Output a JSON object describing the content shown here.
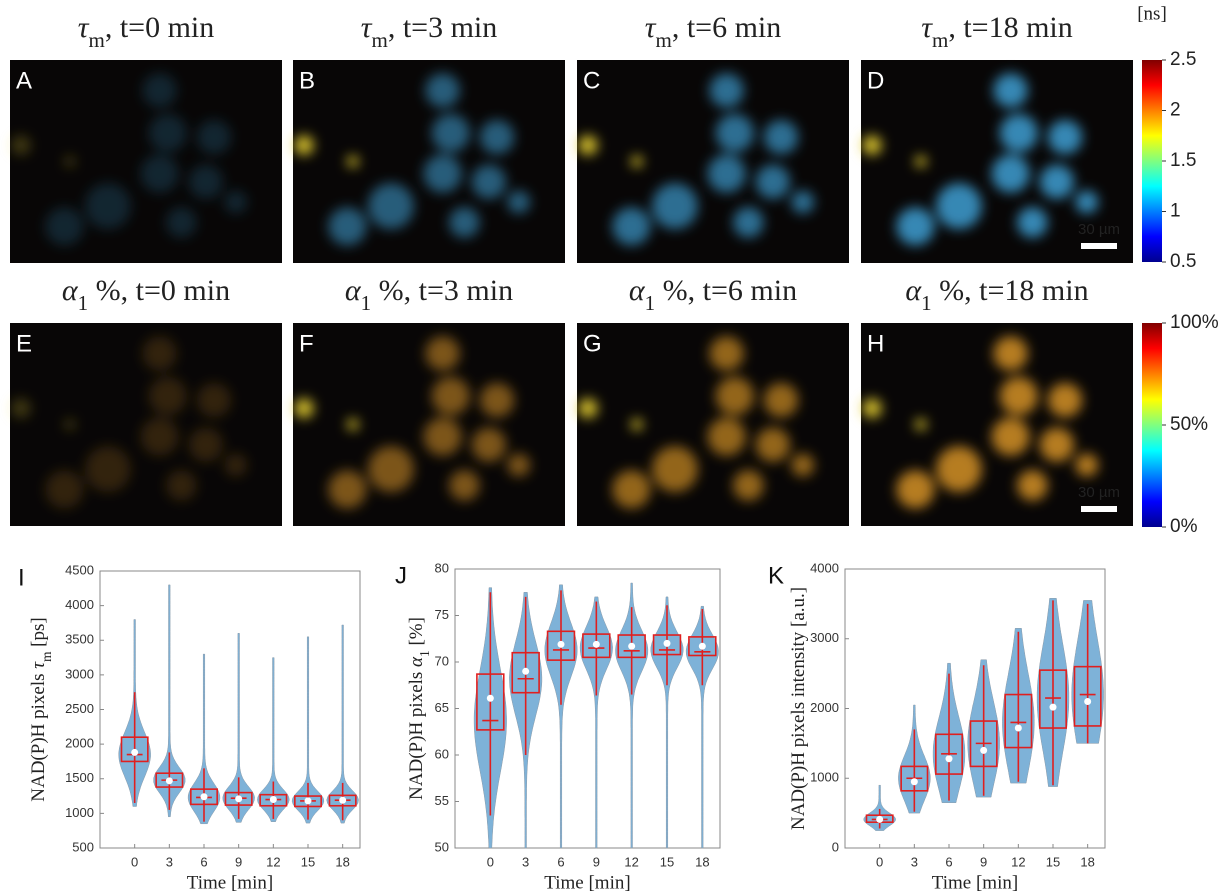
{
  "images": {
    "panels": [
      {
        "letter": "A",
        "title": {
          "symbol": "τ",
          "sub": "m",
          "text": ", t=0 min"
        }
      },
      {
        "letter": "B",
        "title": {
          "symbol": "τ",
          "sub": "m",
          "text": ", t=3 min"
        }
      },
      {
        "letter": "C",
        "title": {
          "symbol": "τ",
          "sub": "m",
          "text": ", t=6 min"
        }
      },
      {
        "letter": "D",
        "title": {
          "symbol": "τ",
          "sub": "m",
          "text": ", t=18 min"
        }
      },
      {
        "letter": "E",
        "title": {
          "symbol": "α",
          "sub": "1",
          "text": " %, t=0 min"
        }
      },
      {
        "letter": "F",
        "title": {
          "symbol": "α",
          "sub": "1",
          "text": " %, t=3 min"
        }
      },
      {
        "letter": "G",
        "title": {
          "symbol": "α",
          "sub": "1",
          "text": " %, t=6 min"
        }
      },
      {
        "letter": "H",
        "title": {
          "symbol": "α",
          "sub": "1",
          "text": " %, t=18 min"
        }
      }
    ],
    "scale_bars": [
      "30 µm",
      "30 µm"
    ]
  },
  "colorbars": [
    {
      "unit": "[ns]",
      "lim": [
        0.5,
        2.5
      ],
      "ticks": [
        0.5,
        1,
        1.5,
        2,
        2.5
      ]
    },
    {
      "lim": [
        0,
        100
      ],
      "ticks": [
        {
          "value": 0,
          "label": "0%"
        },
        {
          "value": 50,
          "label": "50%"
        },
        {
          "value": 100,
          "label": "100%"
        }
      ]
    }
  ],
  "chart_data": [
    {
      "type": "violin-box",
      "panel_label": "I",
      "y_label": {
        "text": "NAD(P)H pixels ",
        "symbol": "τ",
        "sub": "m",
        "suffix": " [ps]"
      },
      "x_label": "Time [min]",
      "categories": [
        "0",
        "3",
        "6",
        "9",
        "12",
        "15",
        "18"
      ],
      "min": [
        1100,
        950,
        850,
        870,
        880,
        860,
        860
      ],
      "whisker_low": [
        1150,
        1050,
        880,
        920,
        920,
        910,
        900
      ],
      "q1": [
        1750,
        1380,
        1130,
        1120,
        1110,
        1100,
        1110
      ],
      "median": [
        1850,
        1480,
        1230,
        1220,
        1200,
        1180,
        1190
      ],
      "q3": [
        2100,
        1580,
        1350,
        1300,
        1270,
        1250,
        1260
      ],
      "whisker_high": [
        2750,
        1880,
        1650,
        1520,
        1460,
        1440,
        1440
      ],
      "max": [
        3800,
        4300,
        3300,
        3600,
        3250,
        3550,
        3720
      ],
      "mean": [
        1880,
        1470,
        1240,
        1210,
        1200,
        1180,
        1190
      ],
      "ylim": [
        500,
        4500
      ],
      "yticks": [
        500,
        1000,
        1500,
        2000,
        2500,
        3000,
        3500,
        4000,
        4500
      ],
      "violin_color": "#7eb2d8",
      "box_color": "#e01f1f"
    },
    {
      "type": "violin-box",
      "panel_label": "J",
      "y_label": {
        "text": "NAD(P)H pixels ",
        "symbol": "α",
        "sub": "1",
        "suffix": " [%]"
      },
      "x_label": "Time [min]",
      "categories": [
        "0",
        "3",
        "6",
        "9",
        "12",
        "15",
        "18"
      ],
      "min": [
        50,
        50,
        50,
        50,
        50,
        50,
        50
      ],
      "whisker_low": [
        53.5,
        60,
        65.4,
        66.4,
        66.5,
        67.5,
        67.5
      ],
      "q1": [
        62.7,
        66.7,
        70.2,
        70.5,
        70.5,
        70.8,
        70.7
      ],
      "median": [
        63.7,
        68.2,
        71.3,
        71.5,
        71.2,
        71.3,
        71.1
      ],
      "q3": [
        68.7,
        71,
        73.3,
        73,
        72.9,
        72.9,
        72.7
      ],
      "whisker_high": [
        77.5,
        77,
        77.7,
        76.5,
        75.9,
        76.1,
        75.7
      ],
      "max": [
        78,
        77.5,
        78.3,
        77,
        78.5,
        77,
        76
      ],
      "mean": [
        66.1,
        69,
        71.9,
        71.9,
        71.7,
        72,
        71.7
      ],
      "ylim": [
        50,
        80
      ],
      "yticks": [
        50,
        55,
        60,
        65,
        70,
        75,
        80
      ],
      "violin_color": "#7eb2d8",
      "box_color": "#e01f1f"
    },
    {
      "type": "violin-box",
      "panel_label": "K",
      "y_label": {
        "text": "NAD(P)H pixels intensity [a.u.]"
      },
      "x_label": "Time [min]",
      "categories": [
        "0",
        "3",
        "6",
        "9",
        "12",
        "15",
        "18"
      ],
      "min": [
        250,
        500,
        650,
        730,
        930,
        880,
        1500
      ],
      "whisker_low": [
        280,
        520,
        680,
        750,
        950,
        900,
        1500
      ],
      "q1": [
        370,
        820,
        1060,
        1170,
        1440,
        1720,
        1750
      ],
      "median": [
        410,
        1000,
        1350,
        1500,
        1800,
        2150,
        2200
      ],
      "q3": [
        470,
        1170,
        1630,
        1820,
        2200,
        2550,
        2600
      ],
      "whisker_high": [
        560,
        1700,
        2500,
        2620,
        3100,
        3550,
        3500
      ],
      "max": [
        900,
        2050,
        2650,
        2700,
        3150,
        3580,
        3550
      ],
      "mean": [
        410,
        950,
        1280,
        1400,
        1720,
        2020,
        2100
      ],
      "ylim": [
        0,
        4000
      ],
      "yticks": [
        0,
        1000,
        2000,
        3000,
        4000
      ],
      "violin_color": "#7eb2d8",
      "box_color": "#e01f1f"
    }
  ]
}
